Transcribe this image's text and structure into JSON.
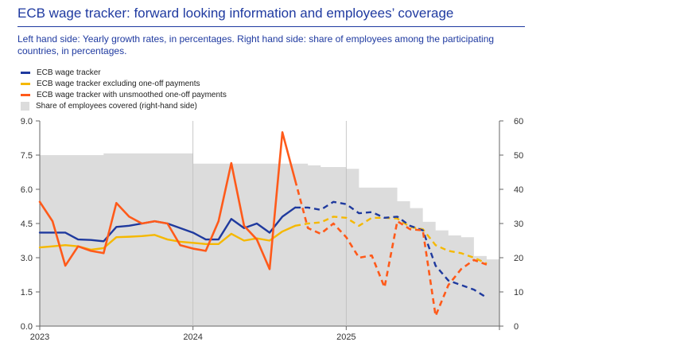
{
  "header": {
    "title": "ECB wage tracker: forward looking information and employees’ coverage",
    "subtitle": "Left hand side: Yearly growth rates, in percentages. Right hand side: share of employees among the participating countries, in percentages."
  },
  "colors": {
    "tracker": "#1f3a9e",
    "excluding": "#f5b800",
    "unsmoothed": "#ff5a1a",
    "coverage": "#dcdcdc",
    "axis": "#666666",
    "tick_text": "#333333"
  },
  "chart_data": {
    "type": "line",
    "legend_placement": "top-left",
    "grid": false,
    "x_axis": {
      "tick_labels": [
        "2023",
        "2024",
        "2025"
      ],
      "range_months": [
        0,
        36
      ]
    },
    "y_left": {
      "range": [
        0,
        9
      ],
      "ticks": [
        "0.0",
        "1.5",
        "3.0",
        "4.5",
        "6.0",
        "7.5",
        "9.0"
      ]
    },
    "y_right": {
      "range": [
        0,
        60
      ],
      "ticks": [
        "0",
        "10",
        "20",
        "30",
        "40",
        "50",
        "60"
      ]
    },
    "legend": [
      {
        "label": "ECB wage tracker",
        "color": "#1f3a9e",
        "kind": "line"
      },
      {
        "label": "ECB wage tracker excluding one-off payments",
        "color": "#f5b800",
        "kind": "line"
      },
      {
        "label": "ECB wage tracker with unsmoothed one-off payments",
        "color": "#ff5a1a",
        "kind": "line"
      },
      {
        "label": "Share of employees covered (right-hand side)",
        "color": "#dcdcdc",
        "kind": "box"
      }
    ],
    "forecast_start_index": 21,
    "series": [
      {
        "key": "tracker",
        "axis": "left",
        "x": [
          0,
          1,
          2,
          3,
          4,
          5,
          6,
          7,
          8,
          9,
          10,
          11,
          12,
          13,
          14,
          15,
          16,
          17,
          18,
          19,
          20,
          21,
          22,
          23,
          24,
          25,
          26,
          27,
          28,
          29,
          30,
          31,
          32,
          33,
          34,
          35
        ],
        "values": [
          4.1,
          4.1,
          4.1,
          3.8,
          3.78,
          3.72,
          4.35,
          4.4,
          4.5,
          4.6,
          4.5,
          4.3,
          4.1,
          3.8,
          3.8,
          4.7,
          4.3,
          4.5,
          4.1,
          4.8,
          5.2,
          5.2,
          5.1,
          5.45,
          5.35,
          4.95,
          5.0,
          4.75,
          4.8,
          4.4,
          4.2,
          2.65,
          2.0,
          1.8,
          1.6,
          1.25
        ]
      },
      {
        "key": "excluding",
        "axis": "left",
        "x": [
          0,
          1,
          2,
          3,
          4,
          5,
          6,
          7,
          8,
          9,
          10,
          11,
          12,
          13,
          14,
          15,
          16,
          17,
          18,
          19,
          20,
          21,
          22,
          23,
          24,
          25,
          26,
          27,
          28,
          29,
          30,
          31,
          32,
          33,
          34,
          35
        ],
        "values": [
          3.45,
          3.5,
          3.55,
          3.5,
          3.35,
          3.42,
          3.9,
          3.92,
          3.95,
          4.0,
          3.8,
          3.7,
          3.65,
          3.6,
          3.6,
          4.05,
          3.75,
          3.85,
          3.75,
          4.15,
          4.4,
          4.5,
          4.55,
          4.8,
          4.75,
          4.4,
          4.75,
          4.75,
          4.72,
          4.35,
          4.25,
          3.55,
          3.3,
          3.2,
          3.0,
          2.75
        ]
      },
      {
        "key": "unsmoothed",
        "axis": "left",
        "x": [
          0,
          1,
          2,
          3,
          4,
          5,
          6,
          7,
          8,
          9,
          10,
          11,
          12,
          13,
          14,
          15,
          16,
          17,
          18,
          19,
          20,
          21,
          22,
          23,
          24,
          25,
          26,
          27,
          28,
          29,
          30,
          31,
          32,
          33,
          34,
          35
        ],
        "values": [
          5.45,
          4.6,
          2.65,
          3.5,
          3.3,
          3.2,
          5.4,
          4.8,
          4.5,
          4.6,
          4.5,
          3.55,
          3.4,
          3.3,
          4.6,
          7.15,
          4.4,
          3.8,
          2.5,
          8.5,
          6.4,
          4.3,
          4.05,
          4.5,
          3.9,
          3.0,
          3.1,
          1.7,
          4.6,
          4.25,
          4.2,
          0.45,
          1.8,
          2.5,
          2.9,
          2.7
        ]
      },
      {
        "key": "coverage",
        "axis": "right",
        "x": [
          0,
          1,
          2,
          3,
          4,
          5,
          6,
          7,
          8,
          9,
          10,
          11,
          12,
          13,
          14,
          15,
          16,
          17,
          18,
          19,
          20,
          21,
          22,
          23,
          24,
          25,
          26,
          27,
          28,
          29,
          30,
          31,
          32,
          33,
          34,
          35
        ],
        "values": [
          50,
          50,
          50,
          50,
          50,
          50.5,
          50.5,
          50.5,
          50.5,
          50.5,
          50.5,
          50.5,
          47.5,
          47.5,
          47.5,
          47.5,
          47.5,
          47.5,
          47.5,
          47.5,
          47.5,
          47,
          46.5,
          46.5,
          46,
          40.5,
          40.5,
          40.5,
          36.5,
          34.5,
          30.5,
          28,
          26.5,
          26,
          20.5,
          19.5
        ]
      }
    ]
  }
}
